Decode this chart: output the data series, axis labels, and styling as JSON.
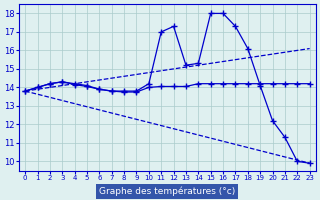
{
  "title": "Graphe des températures (°c)",
  "background_color": "#dff0f0",
  "grid_color": "#aacccc",
  "line_color": "#0000cc",
  "xlim": [
    -0.5,
    23.5
  ],
  "ylim": [
    9.5,
    18.5
  ],
  "xticks": [
    0,
    1,
    2,
    3,
    4,
    5,
    6,
    7,
    8,
    9,
    10,
    11,
    12,
    13,
    14,
    15,
    16,
    17,
    18,
    19,
    20,
    21,
    22,
    23
  ],
  "yticks": [
    10,
    11,
    12,
    13,
    14,
    15,
    16,
    17,
    18
  ],
  "curve1_x": [
    0,
    1,
    2,
    3,
    4,
    5,
    6,
    7,
    8,
    9,
    10,
    11,
    12,
    13,
    14,
    15,
    16,
    17,
    18,
    19,
    20,
    21,
    22,
    23
  ],
  "curve1_y": [
    13.8,
    14.0,
    14.2,
    14.3,
    14.2,
    14.1,
    13.9,
    13.8,
    13.8,
    13.8,
    14.2,
    17.0,
    17.3,
    15.2,
    15.3,
    18.0,
    18.0,
    17.3,
    16.1,
    14.1,
    12.2,
    11.3,
    10.0,
    9.9
  ],
  "curve2_x": [
    0,
    1,
    2,
    3,
    4,
    5,
    6,
    7,
    8,
    9,
    10,
    11,
    12,
    13,
    14,
    15,
    16,
    17,
    18,
    19,
    20,
    21,
    22,
    23
  ],
  "curve2_y": [
    13.8,
    14.0,
    14.2,
    14.3,
    14.15,
    14.05,
    13.9,
    13.8,
    13.75,
    13.75,
    14.0,
    14.05,
    14.05,
    14.05,
    14.2,
    14.2,
    14.2,
    14.2,
    14.2,
    14.2,
    14.2,
    14.2,
    14.2,
    14.2
  ],
  "curve3_x": [
    0,
    23
  ],
  "curve3_y": [
    13.8,
    16.1
  ],
  "curve4_x": [
    0,
    23
  ],
  "curve4_y": [
    13.8,
    9.9
  ],
  "xlabel_bg": "#3355aa",
  "xlabel_fg": "#ffffff"
}
